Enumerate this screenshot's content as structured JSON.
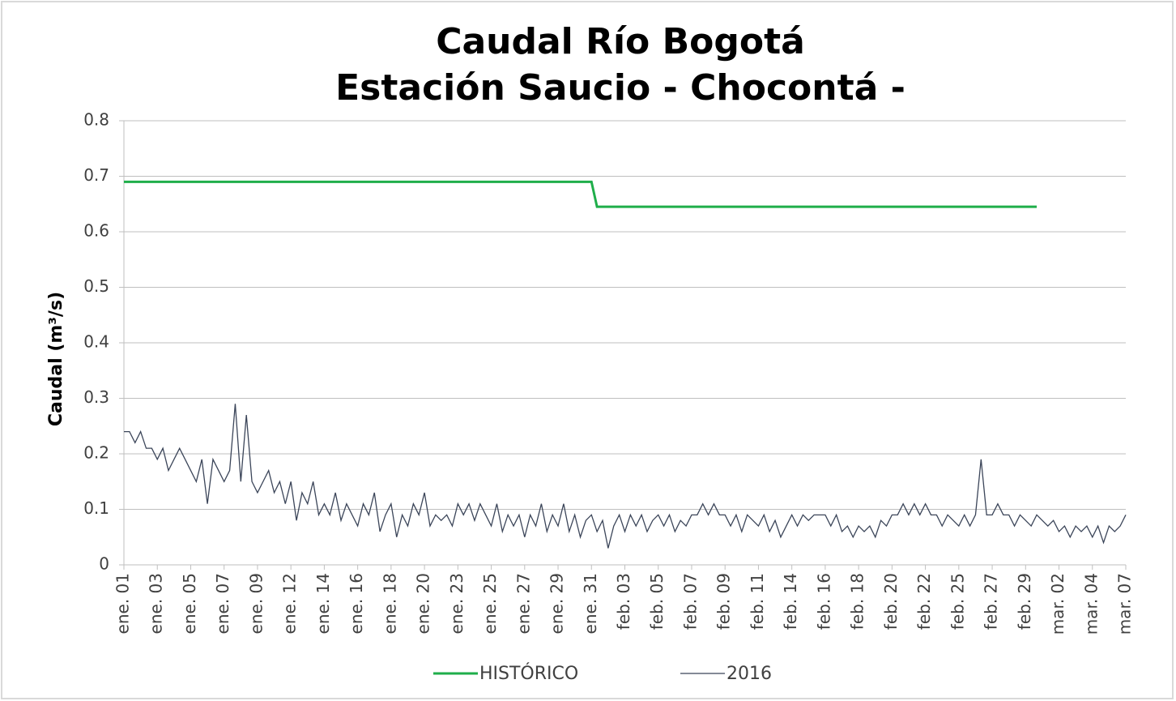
{
  "chart_data": {
    "type": "line",
    "title": "Caudal Río Bogotá",
    "subtitle": "Estación Saucio - Chocontá -",
    "y_label": "Caudal (m³/s)",
    "categories": [
      "ene. 01",
      null,
      null,
      null,
      null,
      null,
      "ene. 03",
      null,
      null,
      null,
      null,
      null,
      "ene. 05",
      null,
      null,
      null,
      null,
      null,
      "ene. 07",
      null,
      null,
      null,
      null,
      null,
      "ene. 09",
      null,
      null,
      null,
      null,
      null,
      "ene. 12",
      null,
      null,
      null,
      null,
      null,
      "ene. 14",
      null,
      null,
      null,
      null,
      null,
      "ene. 16",
      null,
      null,
      null,
      null,
      null,
      "ene. 18",
      null,
      null,
      null,
      null,
      null,
      "ene. 20",
      null,
      null,
      null,
      null,
      null,
      "ene. 23",
      null,
      null,
      null,
      null,
      null,
      "ene. 25",
      null,
      null,
      null,
      null,
      null,
      "ene. 27",
      null,
      null,
      null,
      null,
      null,
      "ene. 29",
      null,
      null,
      null,
      null,
      null,
      "ene. 31",
      null,
      null,
      null,
      null,
      null,
      "feb. 03",
      null,
      null,
      null,
      null,
      null,
      "feb. 05",
      null,
      null,
      null,
      null,
      null,
      "feb. 07",
      null,
      null,
      null,
      null,
      null,
      "feb. 09",
      null,
      null,
      null,
      null,
      null,
      "feb. 11",
      null,
      null,
      null,
      null,
      null,
      "feb. 14",
      null,
      null,
      null,
      null,
      null,
      "feb. 16",
      null,
      null,
      null,
      null,
      null,
      "feb. 18",
      null,
      null,
      null,
      null,
      null,
      "feb. 20",
      null,
      null,
      null,
      null,
      null,
      "feb. 22",
      null,
      null,
      null,
      null,
      null,
      "feb. 25",
      null,
      null,
      null,
      null,
      null,
      "feb. 27",
      null,
      null,
      null,
      null,
      null,
      "feb. 29",
      null,
      null,
      null,
      null,
      null,
      "mar. 02",
      null,
      null,
      null,
      null,
      null,
      "mar. 04",
      null,
      null,
      null,
      null,
      null,
      "mar. 07"
    ],
    "series": [
      {
        "name": "HISTÓRICO",
        "color": "#1fae4a",
        "width": 3,
        "values": [
          0.69,
          0.69,
          0.69,
          0.69,
          0.69,
          0.69,
          0.69,
          0.69,
          0.69,
          0.69,
          0.69,
          0.69,
          0.69,
          0.69,
          0.69,
          0.69,
          0.69,
          0.69,
          0.69,
          0.69,
          0.69,
          0.69,
          0.69,
          0.69,
          0.69,
          0.69,
          0.69,
          0.69,
          0.69,
          0.69,
          0.69,
          0.69,
          0.69,
          0.69,
          0.69,
          0.69,
          0.69,
          0.69,
          0.69,
          0.69,
          0.69,
          0.69,
          0.69,
          0.69,
          0.69,
          0.69,
          0.69,
          0.69,
          0.69,
          0.69,
          0.69,
          0.69,
          0.69,
          0.69,
          0.69,
          0.69,
          0.69,
          0.69,
          0.69,
          0.69,
          0.69,
          0.69,
          0.69,
          0.69,
          0.69,
          0.69,
          0.69,
          0.69,
          0.69,
          0.69,
          0.69,
          0.69,
          0.69,
          0.69,
          0.69,
          0.69,
          0.69,
          0.69,
          0.69,
          0.69,
          0.69,
          0.69,
          0.69,
          0.69,
          0.69,
          0.645,
          0.645,
          0.645,
          0.645,
          0.645,
          0.645,
          0.645,
          0.645,
          0.645,
          0.645,
          0.645,
          0.645,
          0.645,
          0.645,
          0.645,
          0.645,
          0.645,
          0.645,
          0.645,
          0.645,
          0.645,
          0.645,
          0.645,
          0.645,
          0.645,
          0.645,
          0.645,
          0.645,
          0.645,
          0.645,
          0.645,
          0.645,
          0.645,
          0.645,
          0.645,
          0.645,
          0.645,
          0.645,
          0.645,
          0.645,
          0.645,
          0.645,
          0.645,
          0.645,
          0.645,
          0.645,
          0.645,
          0.645,
          0.645,
          0.645,
          0.645,
          0.645,
          0.645,
          0.645,
          0.645,
          0.645,
          0.645,
          0.645,
          0.645,
          0.645,
          0.645,
          0.645,
          0.645,
          0.645,
          0.645,
          0.645,
          0.645,
          0.645,
          0.645,
          0.645,
          0.645,
          0.645,
          0.645,
          0.645,
          0.645,
          0.645,
          0.645,
          0.645,
          0.645,
          0.645,
          null,
          null,
          null,
          null,
          null,
          null,
          null,
          null,
          null,
          null,
          null,
          null,
          null,
          null,
          null,
          null
        ]
      },
      {
        "name": "2016",
        "color": "#3b4559",
        "width": 1.3,
        "values": [
          0.24,
          0.24,
          0.22,
          0.24,
          0.21,
          0.21,
          0.19,
          0.21,
          0.17,
          0.19,
          0.21,
          0.19,
          0.17,
          0.15,
          0.19,
          0.11,
          0.19,
          0.17,
          0.15,
          0.17,
          0.29,
          0.15,
          0.27,
          0.15,
          0.13,
          0.15,
          0.17,
          0.13,
          0.15,
          0.11,
          0.15,
          0.08,
          0.13,
          0.11,
          0.15,
          0.09,
          0.11,
          0.09,
          0.13,
          0.08,
          0.11,
          0.09,
          0.07,
          0.11,
          0.09,
          0.13,
          0.06,
          0.09,
          0.11,
          0.05,
          0.09,
          0.07,
          0.11,
          0.09,
          0.13,
          0.07,
          0.09,
          0.08,
          0.09,
          0.07,
          0.11,
          0.09,
          0.11,
          0.08,
          0.11,
          0.09,
          0.07,
          0.11,
          0.06,
          0.09,
          0.07,
          0.09,
          0.05,
          0.09,
          0.07,
          0.11,
          0.06,
          0.09,
          0.07,
          0.11,
          0.06,
          0.09,
          0.05,
          0.08,
          0.09,
          0.06,
          0.08,
          0.03,
          0.07,
          0.09,
          0.06,
          0.09,
          0.07,
          0.09,
          0.06,
          0.08,
          0.09,
          0.07,
          0.09,
          0.06,
          0.08,
          0.07,
          0.09,
          0.09,
          0.11,
          0.09,
          0.11,
          0.09,
          0.09,
          0.07,
          0.09,
          0.06,
          0.09,
          0.08,
          0.07,
          0.09,
          0.06,
          0.08,
          0.05,
          0.07,
          0.09,
          0.07,
          0.09,
          0.08,
          0.09,
          0.09,
          0.09,
          0.07,
          0.09,
          0.06,
          0.07,
          0.05,
          0.07,
          0.06,
          0.07,
          0.05,
          0.08,
          0.07,
          0.09,
          0.09,
          0.11,
          0.09,
          0.11,
          0.09,
          0.11,
          0.09,
          0.09,
          0.07,
          0.09,
          0.08,
          0.07,
          0.09,
          0.07,
          0.09,
          0.19,
          0.09,
          0.09,
          0.11,
          0.09,
          0.09,
          0.07,
          0.09,
          0.08,
          0.07,
          0.09,
          0.08,
          0.07,
          0.08,
          0.06,
          0.07,
          0.05,
          0.07,
          0.06,
          0.07,
          0.05,
          0.07,
          0.04,
          0.07,
          0.06,
          0.07,
          0.09
        ]
      }
    ],
    "ylim": [
      0,
      0.8
    ],
    "yticks": [
      0,
      0.1,
      0.2,
      0.3,
      0.4,
      0.5,
      0.6,
      0.7,
      0.8
    ],
    "grid": true,
    "legend": "bottom"
  }
}
